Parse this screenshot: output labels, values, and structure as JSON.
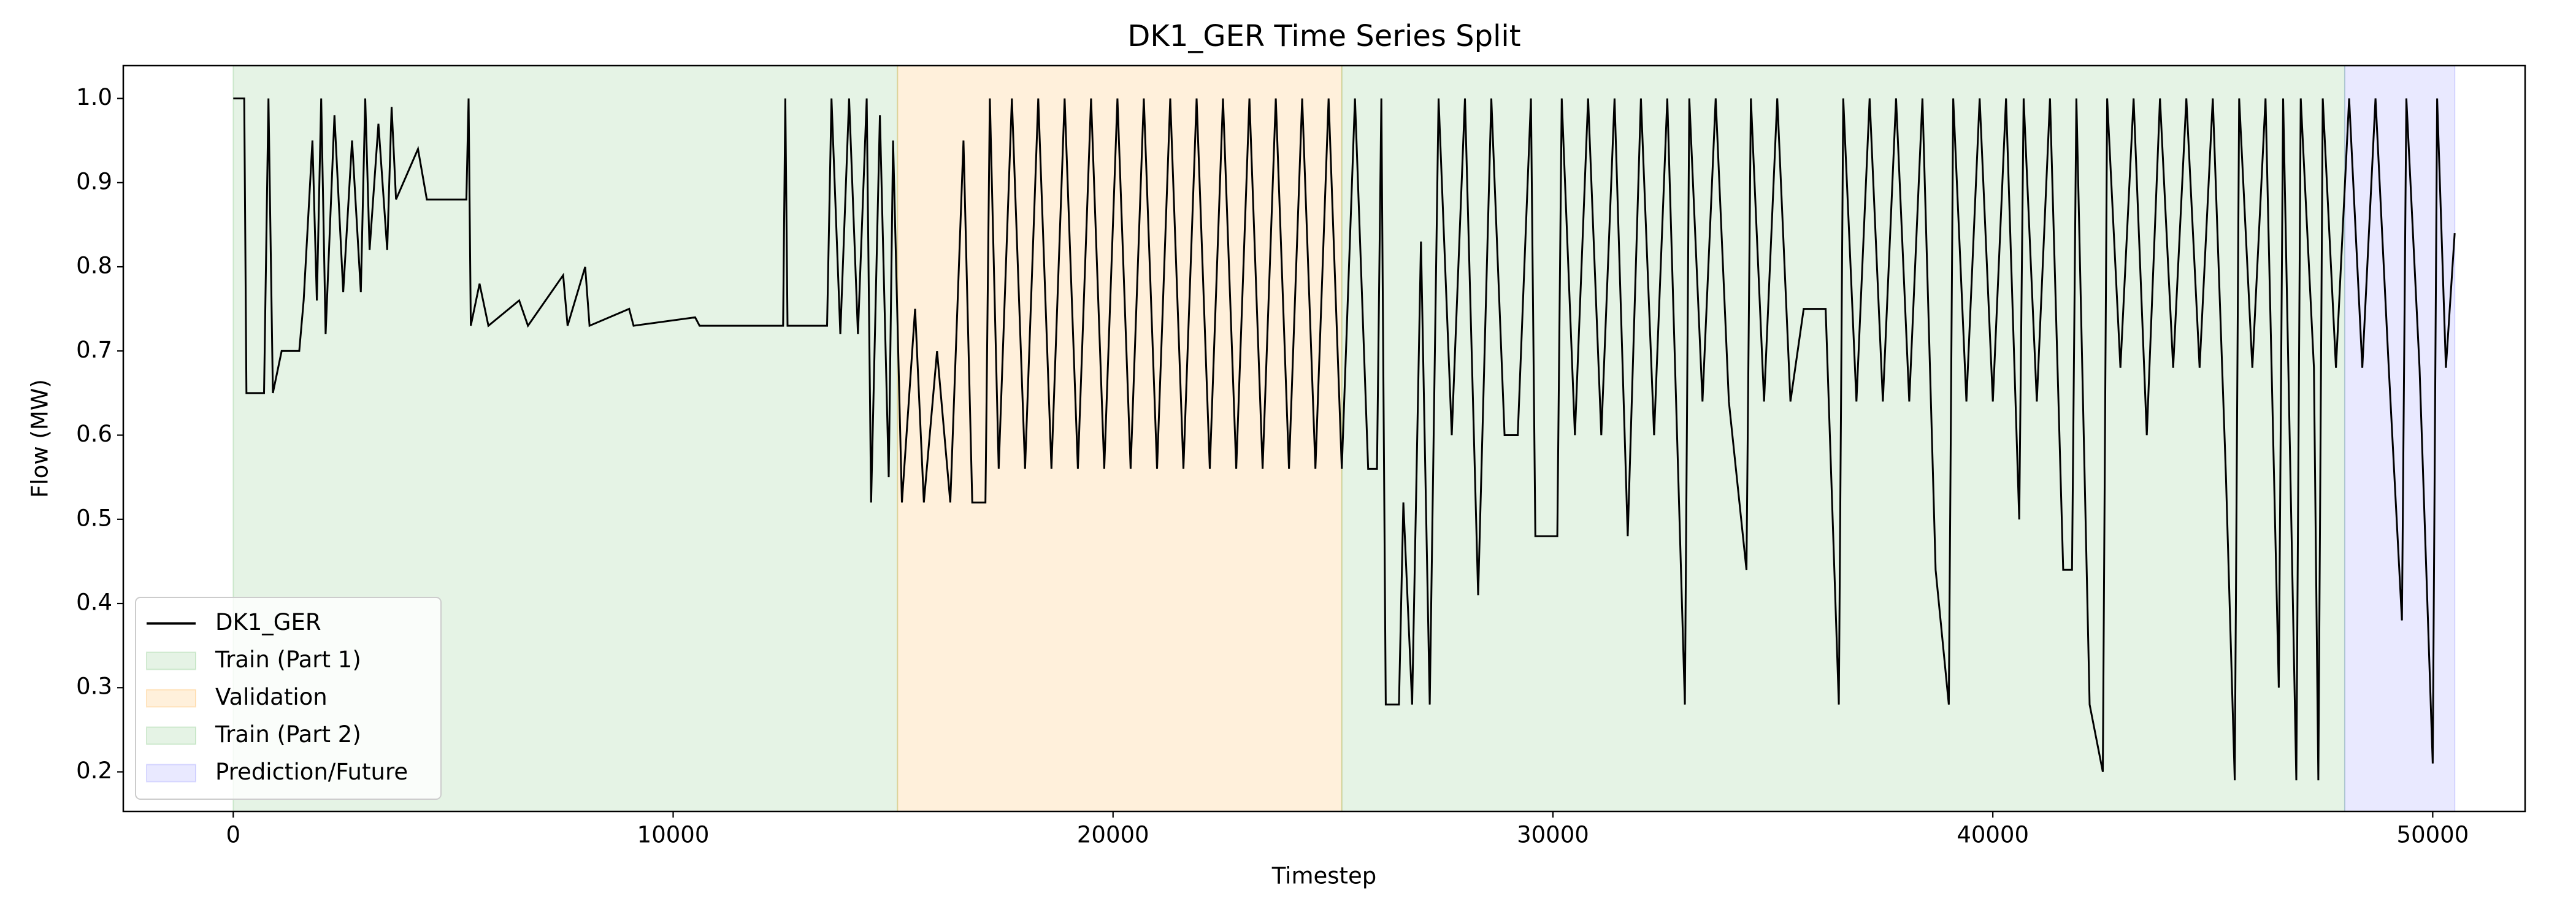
{
  "chart_data": {
    "type": "line",
    "title": "DK1_GER Time Series Split",
    "xlabel": "Timestep",
    "ylabel": "Flow (MW)",
    "xlim": [
      -2500,
      52100
    ],
    "ylim": [
      0.153,
      1.039
    ],
    "xticks": [
      0,
      10000,
      20000,
      30000,
      40000,
      50000
    ],
    "yticks": [
      0.2,
      0.3,
      0.4,
      0.5,
      0.6,
      0.7,
      0.8,
      0.9,
      {
        "value": 1,
        "label": "1.0"
      }
    ],
    "grid": false,
    "legend": "lower left",
    "spans": [
      {
        "name": "Train (Part 1)",
        "color": "#2ca02c",
        "alpha": 0.12,
        "range": [
          0,
          15100
        ]
      },
      {
        "name": "Validation",
        "color": "#ff9f1c",
        "alpha": 0.16,
        "range": [
          15100,
          25200
        ]
      },
      {
        "name": "Train (Part 2)",
        "color": "#2ca02c",
        "alpha": 0.12,
        "range": [
          25200,
          48000
        ]
      },
      {
        "name": "Prediction/Future",
        "color": "#3a3aff",
        "alpha": 0.11,
        "range": [
          48000,
          50500
        ]
      }
    ],
    "series": [
      {
        "name": "DK1_GER",
        "color": "#000000",
        "x": [
          0,
          250,
          300,
          700,
          800,
          900,
          1100,
          1500,
          1600,
          1800,
          1900,
          2000,
          2100,
          2300,
          2500,
          2700,
          2900,
          3000,
          3100,
          3300,
          3500,
          3600,
          3700,
          4200,
          4400,
          5300,
          5350,
          5400,
          5600,
          5800,
          6500,
          6700,
          7500,
          7600,
          8000,
          8100,
          9000,
          9100,
          10500,
          10600,
          12500,
          12550,
          12600,
          13500,
          13600,
          13800,
          14000,
          14200,
          14400,
          14500,
          14700,
          14900,
          15000,
          15200,
          15500,
          15700,
          16000,
          16300,
          16600,
          16800,
          17100,
          17200,
          17400,
          17700,
          18000,
          18300,
          18600,
          18900,
          19200,
          19500,
          19800,
          20100,
          20400,
          20700,
          21000,
          21300,
          21600,
          21900,
          22200,
          22500,
          22800,
          23100,
          23400,
          23700,
          24000,
          24300,
          24600,
          24900,
          25200,
          25500,
          25800,
          26000,
          26100,
          26200,
          26500,
          26600,
          26800,
          27000,
          27200,
          27400,
          27700,
          28000,
          28300,
          28600,
          28900,
          29200,
          29500,
          29600,
          30100,
          30200,
          30500,
          30800,
          31100,
          31400,
          31700,
          32000,
          32300,
          32600,
          33000,
          33100,
          33400,
          33700,
          34000,
          34400,
          34500,
          34800,
          35100,
          35400,
          35700,
          36200,
          36500,
          36600,
          36900,
          37200,
          37500,
          37800,
          38100,
          38400,
          38700,
          39000,
          39100,
          39400,
          39700,
          40000,
          40300,
          40600,
          40700,
          41000,
          41300,
          41600,
          41800,
          41900,
          42200,
          42500,
          42600,
          42900,
          43200,
          43500,
          43800,
          44100,
          44400,
          44700,
          45000,
          45300,
          45500,
          45600,
          45900,
          46200,
          46500,
          46600,
          46900,
          47000,
          47300,
          47400,
          47500,
          47800,
          48100,
          48400,
          48700,
          49000,
          49300,
          49400,
          49700,
          50000,
          50100,
          50300,
          50500
        ],
        "values": [
          1.0,
          1.0,
          0.65,
          0.65,
          1.0,
          0.65,
          0.7,
          0.7,
          0.76,
          0.95,
          0.76,
          1.0,
          0.72,
          0.98,
          0.77,
          0.95,
          0.77,
          1.0,
          0.82,
          0.97,
          0.82,
          0.99,
          0.88,
          0.94,
          0.88,
          0.88,
          1.0,
          0.73,
          0.78,
          0.73,
          0.76,
          0.73,
          0.79,
          0.73,
          0.8,
          0.73,
          0.75,
          0.73,
          0.74,
          0.73,
          0.73,
          1.0,
          0.73,
          0.73,
          1.0,
          0.72,
          1.0,
          0.72,
          1.0,
          0.52,
          0.98,
          0.55,
          0.95,
          0.52,
          0.75,
          0.52,
          0.7,
          0.52,
          0.95,
          0.52,
          0.52,
          1.0,
          0.56,
          1.0,
          0.56,
          1.0,
          0.56,
          1.0,
          0.56,
          1.0,
          0.56,
          1.0,
          0.56,
          1.0,
          0.56,
          1.0,
          0.56,
          1.0,
          0.56,
          1.0,
          0.56,
          1.0,
          0.56,
          1.0,
          0.56,
          1.0,
          0.56,
          1.0,
          0.56,
          1.0,
          0.56,
          0.56,
          1.0,
          0.28,
          0.28,
          0.52,
          0.28,
          0.83,
          0.28,
          1.0,
          0.6,
          1.0,
          0.41,
          1.0,
          0.6,
          0.6,
          1.0,
          0.48,
          0.48,
          1.0,
          0.6,
          1.0,
          0.6,
          1.0,
          0.48,
          1.0,
          0.6,
          1.0,
          0.28,
          1.0,
          0.64,
          1.0,
          0.64,
          0.44,
          1.0,
          0.64,
          1.0,
          0.64,
          0.75,
          0.75,
          0.28,
          1.0,
          0.64,
          1.0,
          0.64,
          1.0,
          0.64,
          1.0,
          0.44,
          0.28,
          1.0,
          0.64,
          1.0,
          0.64,
          1.0,
          0.5,
          1.0,
          0.64,
          1.0,
          0.44,
          0.44,
          1.0,
          0.28,
          0.2,
          1.0,
          0.68,
          1.0,
          0.6,
          1.0,
          0.68,
          1.0,
          0.68,
          1.0,
          0.55,
          0.19,
          1.0,
          0.68,
          1.0,
          0.3,
          1.0,
          0.19,
          1.0,
          0.68,
          0.19,
          1.0,
          0.68,
          1.0,
          0.68,
          1.0,
          0.68,
          0.38,
          1.0,
          0.68,
          0.21,
          1.0,
          0.68,
          0.84
        ]
      }
    ]
  }
}
